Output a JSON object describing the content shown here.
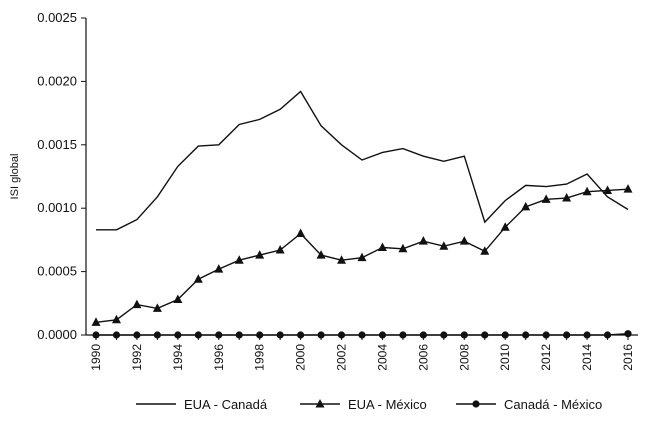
{
  "chart_data": {
    "type": "line",
    "title": "",
    "xlabel": "",
    "ylabel": "ISI global",
    "ylim": [
      0,
      0.0025
    ],
    "yticks": [
      "0.0000",
      "0.0005",
      "0.0010",
      "0.0015",
      "0.0020",
      "0.0025"
    ],
    "xticks": [
      1990,
      1992,
      1994,
      1996,
      1998,
      2000,
      2002,
      2004,
      2006,
      2008,
      2010,
      2012,
      2014,
      2016
    ],
    "x": [
      1990,
      1991,
      1992,
      1993,
      1994,
      1995,
      1996,
      1997,
      1998,
      1999,
      2000,
      2001,
      2002,
      2003,
      2004,
      2005,
      2006,
      2007,
      2008,
      2009,
      2010,
      2011,
      2012,
      2013,
      2014,
      2015,
      2016
    ],
    "grid": false,
    "legend_position": "bottom",
    "series": [
      {
        "name": "EUA - Canadá",
        "marker": "none",
        "color": "#111111",
        "values": [
          0.00083,
          0.00083,
          0.00091,
          0.00109,
          0.00133,
          0.00149,
          0.0015,
          0.00166,
          0.0017,
          0.00178,
          0.00192,
          0.00165,
          0.0015,
          0.00138,
          0.00144,
          0.00147,
          0.00141,
          0.00137,
          0.00141,
          0.00089,
          0.00106,
          0.00118,
          0.00117,
          0.00119,
          0.00127,
          0.00109,
          0.00099
        ]
      },
      {
        "name": "EUA - México",
        "marker": "triangle",
        "color": "#111111",
        "values": [
          0.0001,
          0.00012,
          0.00024,
          0.00021,
          0.00028,
          0.00044,
          0.00052,
          0.00059,
          0.00063,
          0.00067,
          0.0008,
          0.00063,
          0.00059,
          0.00061,
          0.00069,
          0.00068,
          0.00074,
          0.0007,
          0.00074,
          0.00066,
          0.00085,
          0.00101,
          0.00107,
          0.00108,
          0.00113,
          0.00114,
          0.00115
        ]
      },
      {
        "name": "Canadá - México",
        "marker": "circle",
        "color": "#111111",
        "values": [
          0.0,
          0.0,
          0.0,
          0.0,
          0.0,
          0.0,
          0.0,
          0.0,
          0.0,
          0.0,
          0.0,
          0.0,
          0.0,
          0.0,
          0.0,
          0.0,
          0.0,
          0.0,
          0.0,
          0.0,
          0.0,
          0.0,
          0.0,
          0.0,
          0.0,
          0.0,
          1e-05
        ]
      }
    ]
  }
}
